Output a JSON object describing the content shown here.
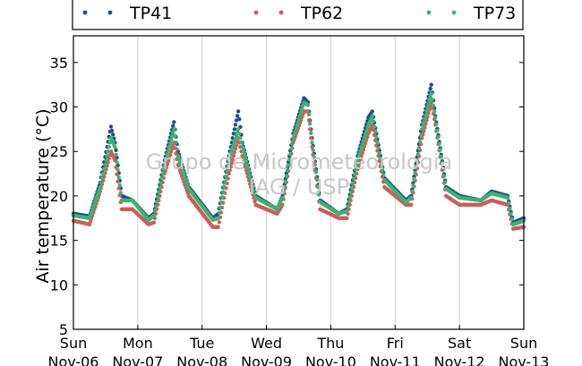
{
  "chart_data": {
    "type": "scatter",
    "title": "",
    "xlabel": "",
    "ylabel": "Air temperature (°C)",
    "ylim": [
      5,
      38
    ],
    "yticks": [
      5,
      10,
      15,
      20,
      25,
      30,
      35
    ],
    "xlim": [
      "2016-11-06T00:00",
      "2016-11-13T00:00"
    ],
    "xtick_labels": [
      {
        "day": "Sun",
        "date": "Nov-06"
      },
      {
        "day": "Mon",
        "date": "Nov-07"
      },
      {
        "day": "Tue",
        "date": "Nov-08"
      },
      {
        "day": "Wed",
        "date": "Nov-09"
      },
      {
        "day": "Thu",
        "date": "Nov-10"
      },
      {
        "day": "Fri",
        "date": "Nov-11"
      },
      {
        "day": "Sat",
        "date": "Nov-12"
      },
      {
        "day": "Sun",
        "date": "Nov-13"
      }
    ],
    "grid": "vertical",
    "legend_position": "top",
    "watermark": [
      "Grupo de Micrometeorologia",
      "IAG / USP"
    ],
    "series": [
      {
        "name": "TP41",
        "color": "#1f4e8c",
        "x": [
          "2016-11-06T00:00",
          "2016-11-06T06:00",
          "2016-11-06T10:00",
          "2016-11-06T14:00",
          "2016-11-06T15:30",
          "2016-11-06T18:00",
          "2016-11-06T22:00",
          "2016-11-07T04:00",
          "2016-11-07T06:00",
          "2016-11-07T10:00",
          "2016-11-07T13:30",
          "2016-11-07T15:00",
          "2016-11-07T19:00",
          "2016-11-08T04:00",
          "2016-11-08T06:00",
          "2016-11-08T10:00",
          "2016-11-08T13:30",
          "2016-11-08T15:00",
          "2016-11-08T20:00",
          "2016-11-09T04:00",
          "2016-11-09T06:00",
          "2016-11-09T10:00",
          "2016-11-09T14:00",
          "2016-11-09T15:30",
          "2016-11-09T17:00",
          "2016-11-09T20:00",
          "2016-11-10T03:00",
          "2016-11-10T06:00",
          "2016-11-10T10:00",
          "2016-11-10T14:00",
          "2016-11-10T15:30",
          "2016-11-10T20:00",
          "2016-11-11T04:00",
          "2016-11-11T06:00",
          "2016-11-11T10:00",
          "2016-11-11T13:30",
          "2016-11-11T15:00",
          "2016-11-11T19:00",
          "2016-11-12T00:00",
          "2016-11-12T08:00",
          "2016-11-12T12:00",
          "2016-11-12T18:00",
          "2016-11-12T20:00",
          "2016-11-13T00:00"
        ],
        "values": [
          18.0,
          17.7,
          21.5,
          27.8,
          26.0,
          20.0,
          19.5,
          17.5,
          18.0,
          24.0,
          28.3,
          25.0,
          21.0,
          17.5,
          18.0,
          24.5,
          29.5,
          26.0,
          20.0,
          18.5,
          20.0,
          27.0,
          31.0,
          30.5,
          26.5,
          19.5,
          18.0,
          18.5,
          24.5,
          28.8,
          29.5,
          22.0,
          19.5,
          20.0,
          28.0,
          32.5,
          29.0,
          21.0,
          20.0,
          19.5,
          20.5,
          20.0,
          17.0,
          17.5
        ]
      },
      {
        "name": "TP62",
        "color": "#cd5c5c",
        "x": [
          "2016-11-06T00:00",
          "2016-11-06T06:00",
          "2016-11-06T10:00",
          "2016-11-06T14:00",
          "2016-11-06T15:30",
          "2016-11-06T18:00",
          "2016-11-06T22:00",
          "2016-11-07T04:00",
          "2016-11-07T06:00",
          "2016-11-07T10:00",
          "2016-11-07T13:30",
          "2016-11-07T15:00",
          "2016-11-07T19:00",
          "2016-11-08T04:00",
          "2016-11-08T06:00",
          "2016-11-08T10:00",
          "2016-11-08T13:30",
          "2016-11-08T15:00",
          "2016-11-08T20:00",
          "2016-11-09T04:00",
          "2016-11-09T06:00",
          "2016-11-09T10:00",
          "2016-11-09T14:00",
          "2016-11-09T15:30",
          "2016-11-09T17:00",
          "2016-11-09T20:00",
          "2016-11-10T03:00",
          "2016-11-10T06:00",
          "2016-11-10T10:00",
          "2016-11-10T14:00",
          "2016-11-10T15:30",
          "2016-11-10T20:00",
          "2016-11-11T04:00",
          "2016-11-11T06:00",
          "2016-11-11T10:00",
          "2016-11-11T13:30",
          "2016-11-11T15:00",
          "2016-11-11T19:00",
          "2016-11-12T00:00",
          "2016-11-12T08:00",
          "2016-11-12T12:00",
          "2016-11-12T18:00",
          "2016-11-12T20:00",
          "2016-11-13T00:00"
        ],
        "values": [
          17.2,
          16.8,
          20.5,
          25.0,
          24.0,
          18.5,
          18.5,
          16.8,
          17.0,
          22.5,
          26.0,
          23.5,
          20.0,
          16.5,
          16.5,
          22.5,
          26.5,
          24.5,
          19.0,
          18.0,
          19.0,
          26.0,
          29.5,
          29.5,
          25.5,
          18.5,
          17.5,
          17.5,
          23.0,
          27.0,
          28.0,
          21.0,
          19.0,
          19.0,
          26.5,
          30.5,
          28.0,
          20.0,
          19.0,
          19.0,
          19.5,
          19.0,
          16.3,
          16.5
        ]
      },
      {
        "name": "TP73",
        "color": "#3cb371",
        "x": [
          "2016-11-06T00:00",
          "2016-11-06T06:00",
          "2016-11-06T10:00",
          "2016-11-06T14:00",
          "2016-11-06T15:30",
          "2016-11-06T18:00",
          "2016-11-06T22:00",
          "2016-11-07T04:00",
          "2016-11-07T06:00",
          "2016-11-07T10:00",
          "2016-11-07T13:30",
          "2016-11-07T15:00",
          "2016-11-07T19:00",
          "2016-11-08T04:00",
          "2016-11-08T06:00",
          "2016-11-08T10:00",
          "2016-11-08T13:30",
          "2016-11-08T15:00",
          "2016-11-08T20:00",
          "2016-11-09T04:00",
          "2016-11-09T06:00",
          "2016-11-09T10:00",
          "2016-11-09T14:00",
          "2016-11-09T15:30",
          "2016-11-09T17:00",
          "2016-11-09T20:00",
          "2016-11-10T03:00",
          "2016-11-10T06:00",
          "2016-11-10T10:00",
          "2016-11-10T14:00",
          "2016-11-10T15:30",
          "2016-11-10T20:00",
          "2016-11-11T04:00",
          "2016-11-11T06:00",
          "2016-11-11T10:00",
          "2016-11-11T13:30",
          "2016-11-11T15:00",
          "2016-11-11T19:00",
          "2016-11-12T00:00",
          "2016-11-12T08:00",
          "2016-11-12T12:00",
          "2016-11-12T18:00",
          "2016-11-12T20:00",
          "2016-11-13T00:00"
        ],
        "values": [
          17.8,
          17.5,
          21.0,
          26.5,
          25.5,
          19.5,
          19.5,
          17.3,
          17.8,
          23.5,
          27.5,
          24.5,
          20.8,
          17.3,
          17.5,
          24.0,
          27.5,
          25.5,
          19.8,
          18.5,
          19.8,
          26.5,
          30.5,
          30.2,
          26.0,
          19.3,
          18.0,
          18.3,
          24.0,
          28.0,
          29.0,
          21.8,
          19.3,
          19.8,
          27.5,
          31.5,
          28.8,
          20.8,
          19.8,
          19.5,
          20.3,
          19.8,
          16.8,
          17.2
        ]
      }
    ]
  }
}
